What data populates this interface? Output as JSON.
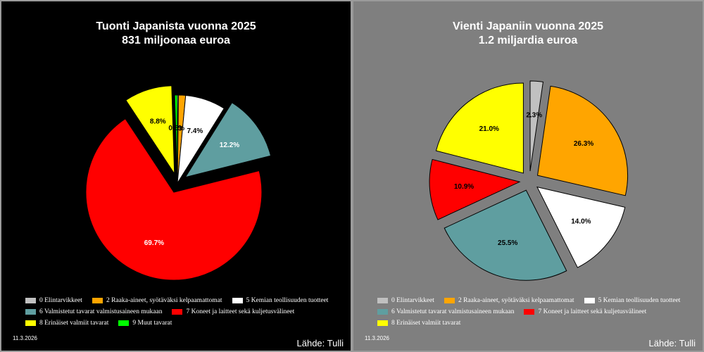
{
  "colors": {
    "c0": "#c0c0c0",
    "c2": "#ffa500",
    "c5": "#ffffff",
    "c6": "#5f9ea0",
    "c7": "#ff0000",
    "c8": "#ffff00",
    "c9": "#00ff00"
  },
  "panels": [
    {
      "title_line1": "Tuonti Japanista vuonna 2025",
      "title_line2": "831 miljoonaa euroa",
      "legend": {
        "rows": [
          [
            {
              "label": "0 Elintarvikkeet",
              "color": "#c0c0c0"
            },
            {
              "label": "2 Raaka-aineet, syötäväksi kelpaamattomat",
              "color": "#ffa500"
            },
            {
              "label": "5 Kemian teollisuuden tuotteet",
              "color": "#ffffff"
            }
          ],
          [
            {
              "label": "6 Valmistetut tavarat valmistusaineen mukaan",
              "color": "#5f9ea0"
            },
            {
              "label": "7 Koneet ja laitteet sekä kuljetusvälineet",
              "color": "#ff0000"
            }
          ],
          [
            {
              "label": "8 Erinäiset valmiit tavarat",
              "color": "#ffff00"
            },
            {
              "label": "9 Muut tavarat",
              "color": "#00ff00"
            }
          ]
        ]
      },
      "date": "11.3.2026",
      "source": "Lähde: Tulli"
    },
    {
      "title_line1": "Vienti Japaniin vuonna 2025",
      "title_line2": "1.2 miljardia euroa",
      "legend": {
        "rows": [
          [
            {
              "label": "0 Elintarvikkeet",
              "color": "#c0c0c0"
            },
            {
              "label": "2 Raaka-aineet, syötäväksi kelpaamattomat",
              "color": "#ffa500"
            },
            {
              "label": "5 Kemian teollisuuden tuotteet",
              "color": "#ffffff"
            }
          ],
          [
            {
              "label": "6 Valmistetut tavarat valmistusaineen mukaan",
              "color": "#5f9ea0"
            },
            {
              "label": "7 Koneet ja laitteet sekä kuljetusvälineet",
              "color": "#ff0000"
            }
          ],
          [
            {
              "label": "8 Erinäiset valmiit tavarat",
              "color": "#ffff00"
            }
          ]
        ]
      },
      "date": "11.3.2026",
      "source": "Lähde: Tulli"
    }
  ],
  "chart_data": [
    {
      "type": "pie",
      "title": "Tuonti Japanista vuonna 2025",
      "subtitle": "831 miljoonaa euroa",
      "legend_position": "bottom",
      "slices": [
        {
          "label": "0 Elintarvikkeet",
          "value": 0.2,
          "value_label": "",
          "color": "#c0c0c0"
        },
        {
          "label": "2 Raaka-aineet, syötäväksi kelpaamattomat",
          "value": 1.3,
          "value_label": "1.3%",
          "color": "#ffa500"
        },
        {
          "label": "5 Kemian teollisuuden tuotteet",
          "value": 7.4,
          "value_label": "7.4%",
          "color": "#ffffff"
        },
        {
          "label": "6 Valmistetut tavarat valmistusaineen mukaan",
          "value": 12.2,
          "value_label": "12.2%",
          "color": "#5f9ea0"
        },
        {
          "label": "7 Koneet ja laitteet sekä kuljetusvälineet",
          "value": 69.7,
          "value_label": "69.7%",
          "color": "#ff0000"
        },
        {
          "label": "8 Erinäiset valmiit tavarat",
          "value": 8.8,
          "value_label": "8.8%",
          "color": "#ffff00"
        },
        {
          "label": "9 Muut tavarat",
          "value": 0.5,
          "value_label": "0.5%",
          "color": "#00ff00"
        }
      ]
    },
    {
      "type": "pie",
      "title": "Vienti Japaniin vuonna 2025",
      "subtitle": "1.2 miljardia euroa",
      "legend_position": "bottom",
      "slices": [
        {
          "label": "0 Elintarvikkeet",
          "value": 2.3,
          "value_label": "2.3%",
          "color": "#c0c0c0"
        },
        {
          "label": "2 Raaka-aineet, syötäväksi kelpaamattomat",
          "value": 26.3,
          "value_label": "26.3%",
          "color": "#ffa500"
        },
        {
          "label": "5 Kemian teollisuuden tuotteet",
          "value": 14.0,
          "value_label": "14.0%",
          "color": "#ffffff"
        },
        {
          "label": "6 Valmistetut tavarat valmistusaineen mukaan",
          "value": 25.5,
          "value_label": "25.5%",
          "color": "#5f9ea0"
        },
        {
          "label": "7 Koneet ja laitteet sekä kuljetusvälineet",
          "value": 10.9,
          "value_label": "10.9%",
          "color": "#ff0000"
        },
        {
          "label": "8 Erinäiset valmiit tavarat",
          "value": 21.0,
          "value_label": "21.0%",
          "color": "#ffff00"
        }
      ]
    }
  ]
}
